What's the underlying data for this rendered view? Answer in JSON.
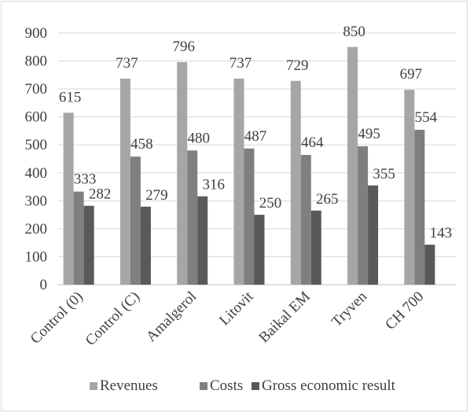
{
  "chart_data": {
    "type": "bar",
    "title": "",
    "xlabel": "",
    "ylabel": "",
    "ylim": [
      0,
      900
    ],
    "ytick_step": 100,
    "grid": true,
    "legend_position": "bottom",
    "categories": [
      "Control (0)",
      "Control (C)",
      "Amalgerol",
      "Litovit",
      "Baikal EM",
      "Tryven",
      "CH 700"
    ],
    "series": [
      {
        "name": "Revenues",
        "color": "#a6a6a6",
        "values": [
          615,
          737,
          796,
          737,
          729,
          850,
          697
        ]
      },
      {
        "name": "Costs",
        "color": "#7f7f7f",
        "values": [
          333,
          458,
          480,
          487,
          464,
          495,
          554
        ]
      },
      {
        "name": "Gross economic result",
        "color": "#595959",
        "values": [
          282,
          279,
          316,
          250,
          265,
          355,
          143
        ]
      }
    ]
  }
}
